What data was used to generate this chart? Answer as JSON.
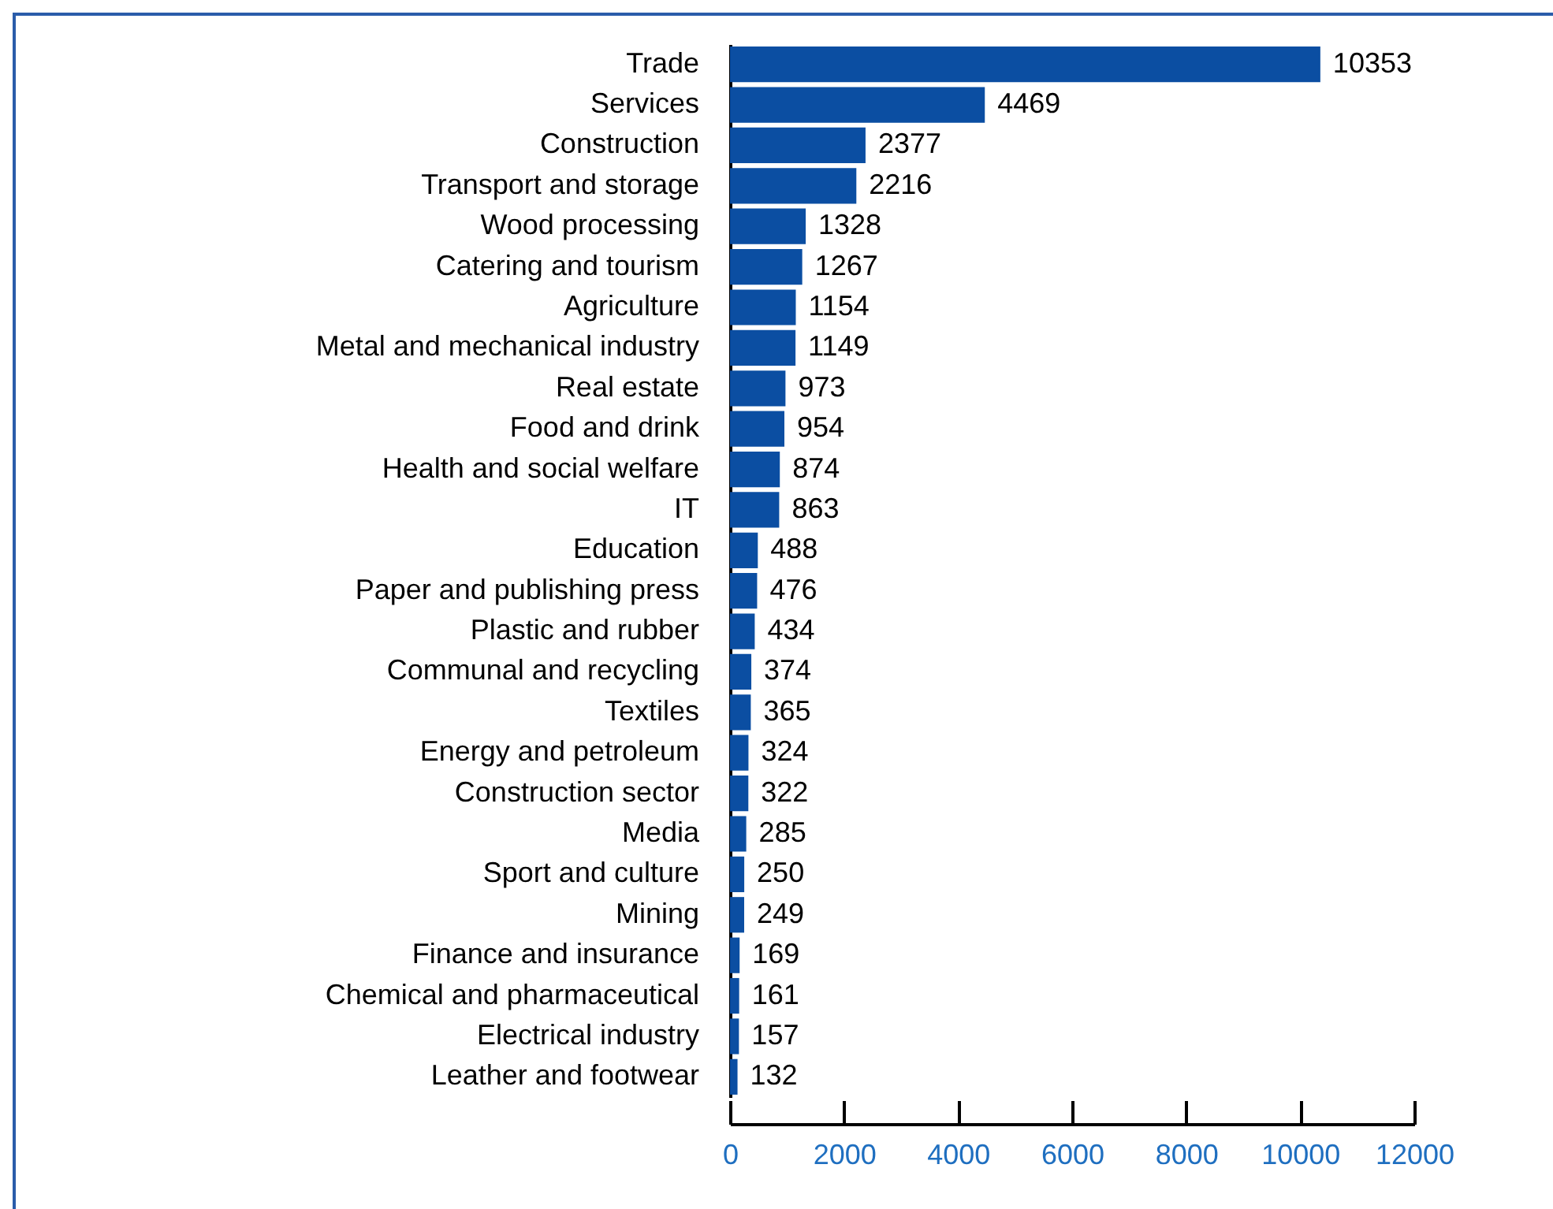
{
  "chart_data": {
    "type": "bar",
    "orientation": "horizontal",
    "categories": [
      "Trade",
      "Services",
      "Construction",
      "Transport and storage",
      "Wood processing",
      "Catering and tourism",
      "Agriculture",
      "Metal and mechanical industry",
      "Real estate",
      "Food and drink",
      "Health and social welfare",
      "IT",
      "Education",
      "Paper and publishing press",
      "Plastic and rubber",
      "Communal and recycling",
      "Textiles",
      "Energy and petroleum",
      "Construction sector",
      "Media",
      "Sport and culture",
      "Mining",
      "Finance and insurance",
      "Chemical and pharmaceutical",
      "Electrical industry",
      "Leather and footwear"
    ],
    "values": [
      10353,
      4469,
      2377,
      2216,
      1328,
      1267,
      1154,
      1149,
      973,
      954,
      874,
      863,
      488,
      476,
      434,
      374,
      365,
      324,
      322,
      285,
      250,
      249,
      169,
      161,
      157,
      132
    ],
    "color": "#0b4ea2",
    "xlim": [
      0,
      12000
    ],
    "xticks": [
      0,
      2000,
      4000,
      6000,
      8000,
      10000,
      12000
    ],
    "grid": false,
    "data_labels": true
  }
}
